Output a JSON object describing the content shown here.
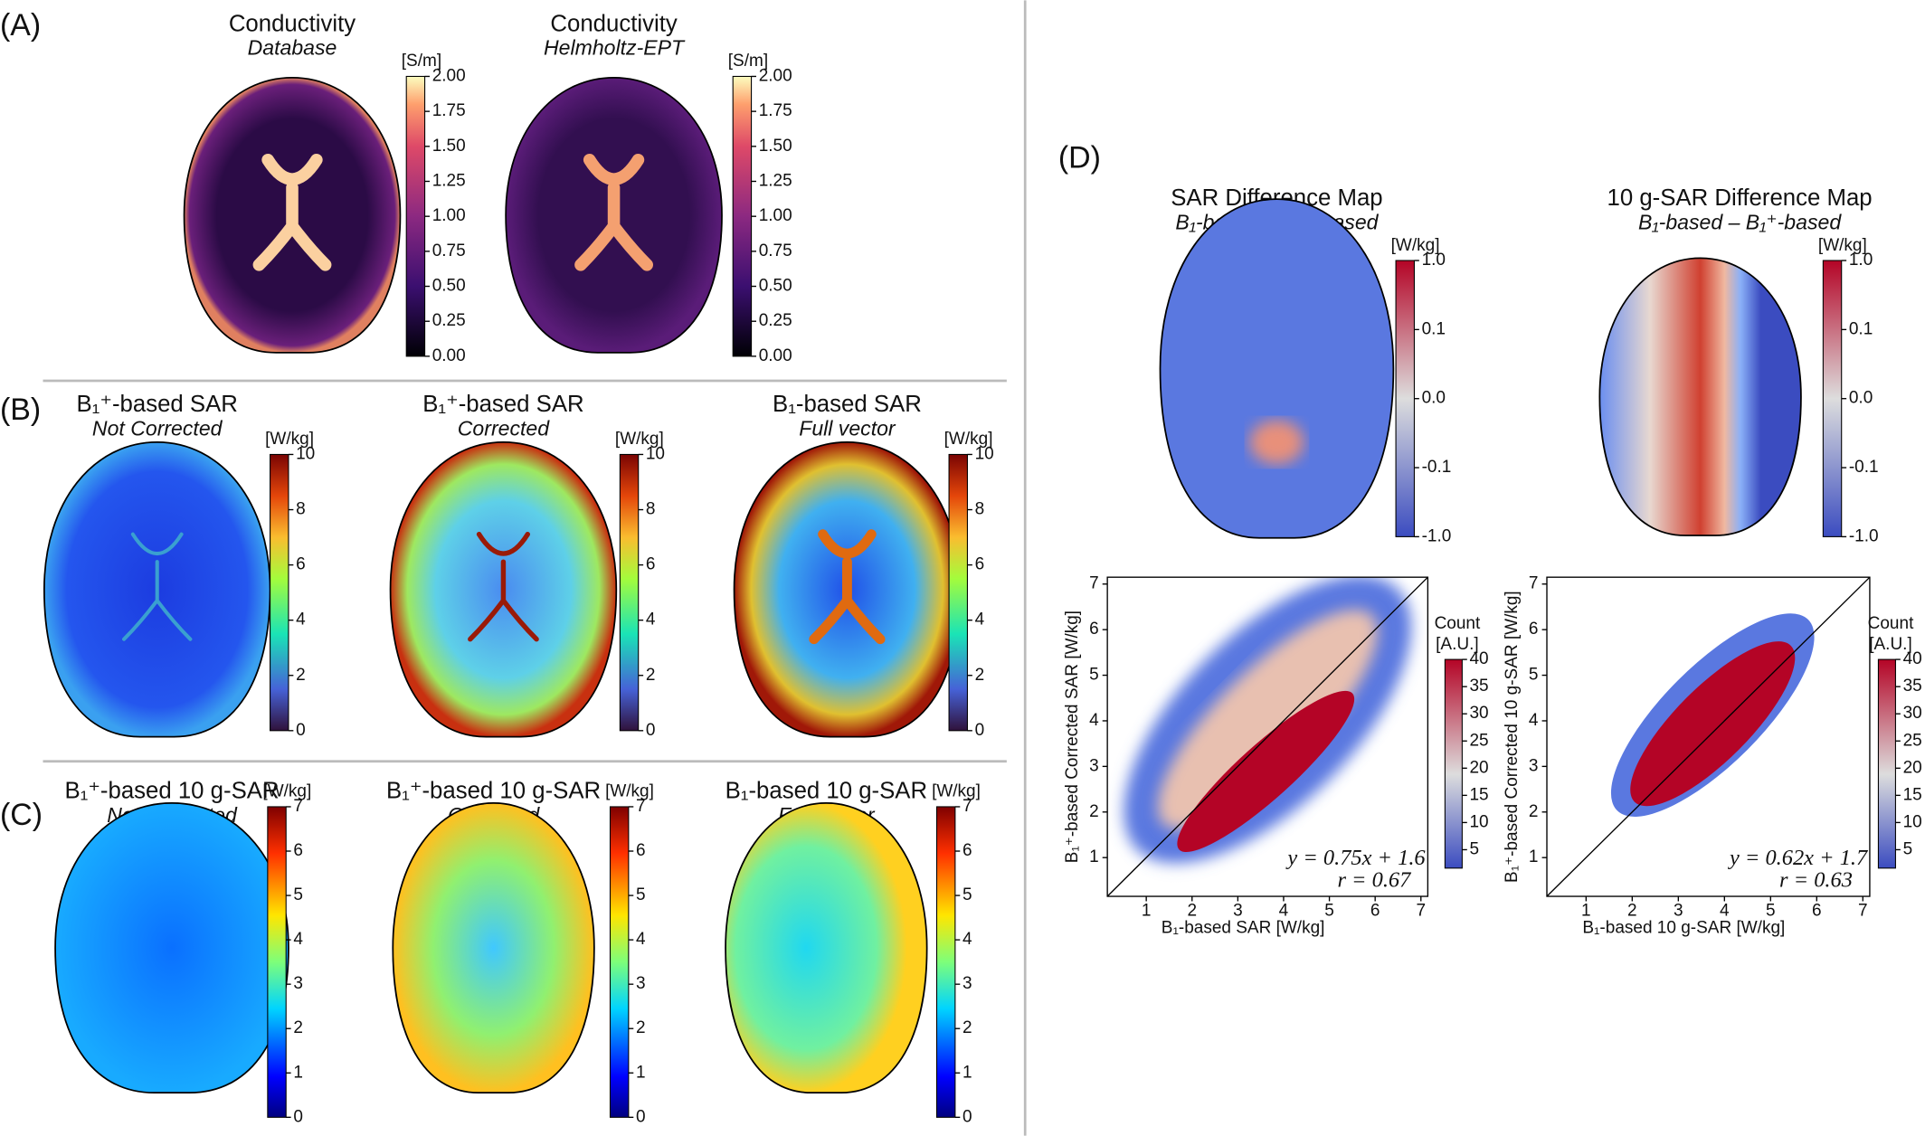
{
  "panels": {
    "A": {
      "label": "(A)",
      "maps": [
        {
          "title": "Conductivity",
          "subtitle": "Database",
          "unit": "[S/m]",
          "ticks": [
            "2.00",
            "1.75",
            "1.50",
            "1.25",
            "1.00",
            "0.75",
            "0.50",
            "0.25",
            "0.00"
          ]
        },
        {
          "title": "Conductivity",
          "subtitle": "Helmholtz-EPT",
          "unit": "[S/m]",
          "ticks": [
            "2.00",
            "1.75",
            "1.50",
            "1.25",
            "1.00",
            "0.75",
            "0.50",
            "0.25",
            "0.00"
          ]
        }
      ]
    },
    "B": {
      "label": "(B)",
      "maps": [
        {
          "title": "B₁⁺-based SAR",
          "subtitle": "Not Corrected",
          "unit": "[W/kg]",
          "ticks": [
            "10",
            "8",
            "6",
            "4",
            "2",
            "0"
          ]
        },
        {
          "title": "B₁⁺-based SAR",
          "subtitle": "Corrected",
          "unit": "[W/kg]",
          "ticks": [
            "10",
            "8",
            "6",
            "4",
            "2",
            "0"
          ]
        },
        {
          "title": "B₁-based SAR",
          "subtitle": "Full vector",
          "unit": "[W/kg]",
          "ticks": [
            "10",
            "8",
            "6",
            "4",
            "2",
            "0"
          ]
        }
      ]
    },
    "C": {
      "label": "(C)",
      "maps": [
        {
          "title": "B₁⁺-based 10 g-SAR",
          "subtitle": "Not Corrected",
          "unit": "[W/kg]",
          "ticks": [
            "7",
            "6",
            "5",
            "4",
            "3",
            "2",
            "1",
            "0"
          ]
        },
        {
          "title": "B₁⁺-based 10 g-SAR",
          "subtitle": "Corrected",
          "unit": "[W/kg]",
          "ticks": [
            "7",
            "6",
            "5",
            "4",
            "3",
            "2",
            "1",
            "0"
          ]
        },
        {
          "title": "B₁-based 10 g-SAR",
          "subtitle": "Full vector",
          "unit": "[W/kg]",
          "ticks": [
            "7",
            "6",
            "5",
            "4",
            "3",
            "2",
            "1",
            "0"
          ]
        }
      ]
    },
    "D": {
      "label": "(D)",
      "maps": [
        {
          "title": "SAR Difference Map",
          "subtitle": "B₁-based – B₁⁺-based",
          "unit": "[W/kg]",
          "ticks": [
            "1.0",
            "0.1",
            "0.0",
            "-0.1",
            "-1.0"
          ]
        },
        {
          "title": "10 g-SAR Difference Map",
          "subtitle": "B₁-based – B₁⁺-based",
          "unit": "[W/kg]",
          "ticks": [
            "1.0",
            "0.1",
            "0.0",
            "-0.1",
            "-1.0"
          ]
        }
      ],
      "plots": [
        {
          "xlabel": "B₁-based SAR [W/kg]",
          "ylabel": "B₁⁺-based Corrected SAR [W/kg]",
          "xticks": [
            "1",
            "2",
            "3",
            "4",
            "5",
            "6",
            "7"
          ],
          "yticks": [
            "1",
            "2",
            "3",
            "4",
            "5",
            "6",
            "7"
          ],
          "fit": "y = 0.75x + 1.6",
          "r": "r = 0.67",
          "cbar_title": "Count",
          "cbar_unit": "[A.U.]",
          "cbar_ticks": [
            "40",
            "35",
            "30",
            "25",
            "20",
            "15",
            "10",
            "5"
          ]
        },
        {
          "xlabel": "B₁-based 10 g-SAR [W/kg]",
          "ylabel": "B₁⁺-based Corrected 10 g-SAR [W/kg]",
          "xticks": [
            "1",
            "2",
            "3",
            "4",
            "5",
            "6",
            "7"
          ],
          "yticks": [
            "1",
            "2",
            "3",
            "4",
            "5",
            "6",
            "7"
          ],
          "fit": "y = 0.62x + 1.7",
          "r": "r = 0.63",
          "cbar_title": "Count",
          "cbar_unit": "[A.U.]",
          "cbar_ticks": [
            "40",
            "35",
            "30",
            "25",
            "20",
            "15",
            "10",
            "5"
          ]
        }
      ]
    }
  }
}
